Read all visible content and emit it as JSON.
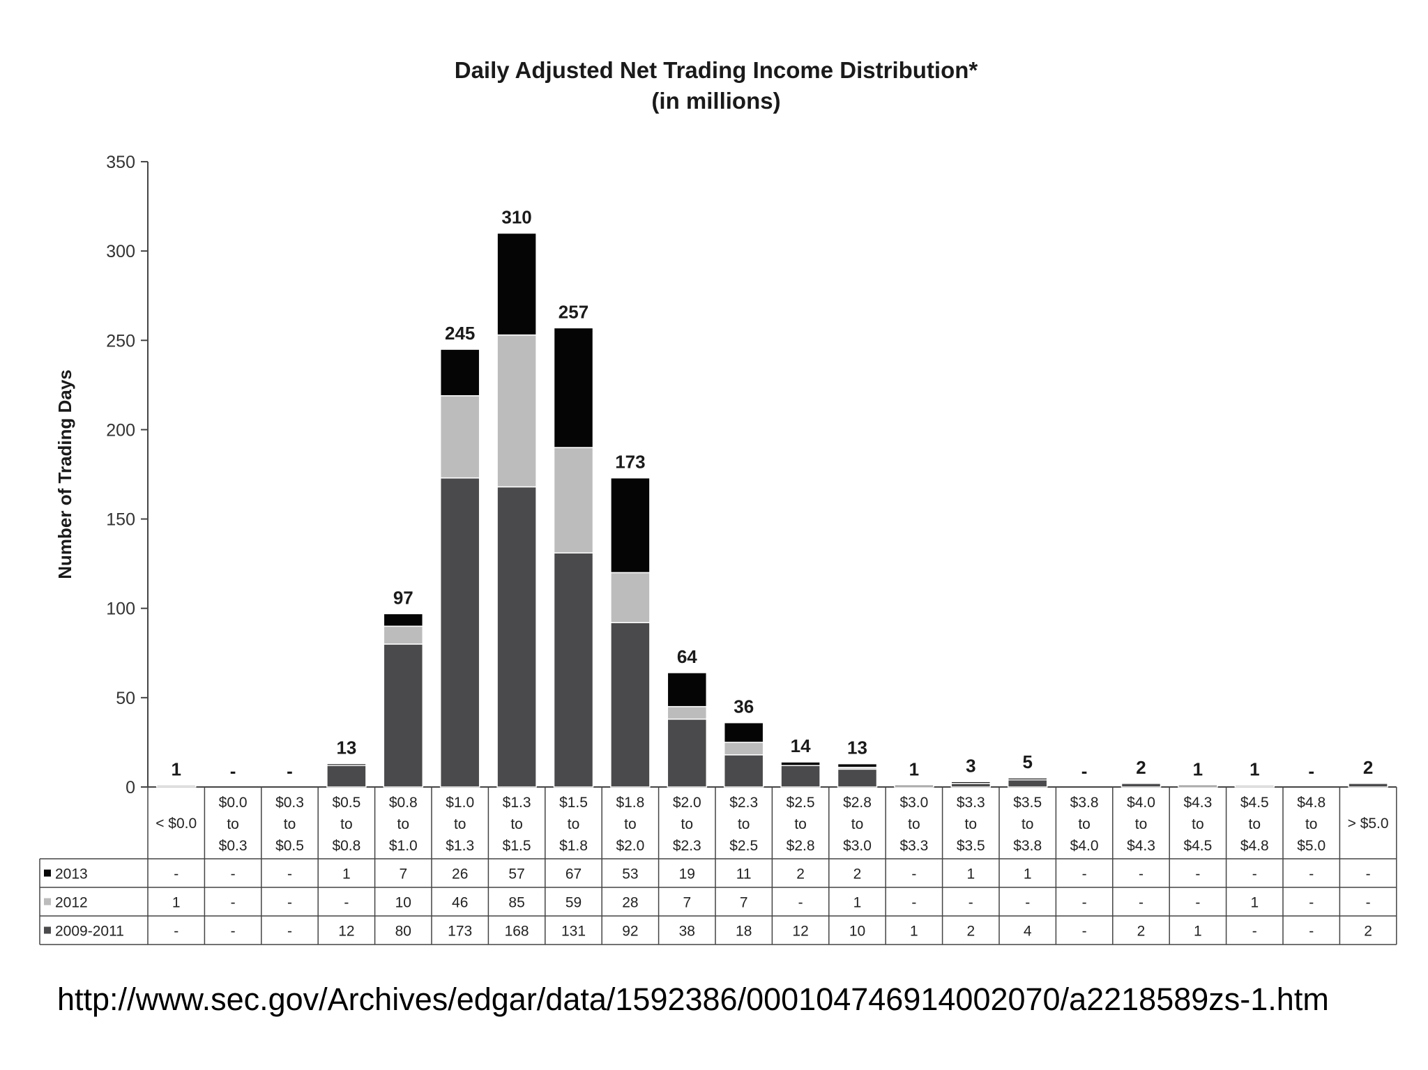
{
  "chart_data": {
    "type": "bar",
    "stacked": true,
    "title": "Daily Adjusted Net Trading Income Distribution*",
    "subtitle": "(in millions)",
    "ylabel": "Number of Trading Days",
    "ylim": [
      0,
      350
    ],
    "yticks": [
      0,
      50,
      100,
      150,
      200,
      250,
      300,
      350
    ],
    "grid": false,
    "categories": [
      [
        "< $0.0"
      ],
      [
        "$0.0",
        "to",
        "$0.3"
      ],
      [
        "$0.3",
        "to",
        "$0.5"
      ],
      [
        "$0.5",
        "to",
        "$0.8"
      ],
      [
        "$0.8",
        "to",
        "$1.0"
      ],
      [
        "$1.0",
        "to",
        "$1.3"
      ],
      [
        "$1.3",
        "to",
        "$1.5"
      ],
      [
        "$1.5",
        "to",
        "$1.8"
      ],
      [
        "$1.8",
        "to",
        "$2.0"
      ],
      [
        "$2.0",
        "to",
        "$2.3"
      ],
      [
        "$2.3",
        "to",
        "$2.5"
      ],
      [
        "$2.5",
        "to",
        "$2.8"
      ],
      [
        "$2.8",
        "to",
        "$3.0"
      ],
      [
        "$3.0",
        "to",
        "$3.3"
      ],
      [
        "$3.3",
        "to",
        "$3.5"
      ],
      [
        "$3.5",
        "to",
        "$3.8"
      ],
      [
        "$3.8",
        "to",
        "$4.0"
      ],
      [
        "$4.0",
        "to",
        "$4.3"
      ],
      [
        "$4.3",
        "to",
        "$4.5"
      ],
      [
        "$4.5",
        "to",
        "$4.8"
      ],
      [
        "$4.8",
        "to",
        "$5.0"
      ],
      [
        "> $5.0"
      ]
    ],
    "totals": [
      "1",
      "-",
      "-",
      "13",
      "97",
      "245",
      "310",
      "257",
      "173",
      "64",
      "36",
      "14",
      "13",
      "1",
      "3",
      "5",
      "-",
      "2",
      "1",
      "1",
      "-",
      "2"
    ],
    "series": [
      {
        "name": "2009-2011",
        "color": "#4a4a4c",
        "values": [
          0,
          0,
          0,
          12,
          80,
          173,
          168,
          131,
          92,
          38,
          18,
          12,
          10,
          1,
          2,
          4,
          0,
          2,
          1,
          0,
          0,
          2
        ],
        "labels": [
          "-",
          "-",
          "-",
          "12",
          "80",
          "173",
          "168",
          "131",
          "92",
          "38",
          "18",
          "12",
          "10",
          "1",
          "2",
          "4",
          "-",
          "2",
          "1",
          "-",
          "-",
          "2"
        ]
      },
      {
        "name": "2012",
        "color": "#bcbcbc",
        "values": [
          1,
          0,
          0,
          0,
          10,
          46,
          85,
          59,
          28,
          7,
          7,
          0,
          1,
          0,
          0,
          0,
          0,
          0,
          0,
          1,
          0,
          0
        ],
        "labels": [
          "1",
          "-",
          "-",
          "-",
          "10",
          "46",
          "85",
          "59",
          "28",
          "7",
          "7",
          "-",
          "1",
          "-",
          "-",
          "-",
          "-",
          "-",
          "-",
          "1",
          "-",
          "-"
        ]
      },
      {
        "name": "2013",
        "color": "#050505",
        "values": [
          0,
          0,
          0,
          1,
          7,
          26,
          57,
          67,
          53,
          19,
          11,
          2,
          2,
          0,
          1,
          1,
          0,
          0,
          0,
          0,
          0,
          0
        ],
        "labels": [
          "-",
          "-",
          "-",
          "1",
          "7",
          "26",
          "57",
          "67",
          "53",
          "19",
          "11",
          "2",
          "2",
          "-",
          "1",
          "1",
          "-",
          "-",
          "-",
          "-",
          "-",
          "-"
        ]
      }
    ],
    "table_row_order": [
      "2013",
      "2012",
      "2009-2011"
    ]
  },
  "source_url": "http://www.sec.gov/Archives/edgar/data/1592386/000104746914002070/a2218589zs-1.htm"
}
